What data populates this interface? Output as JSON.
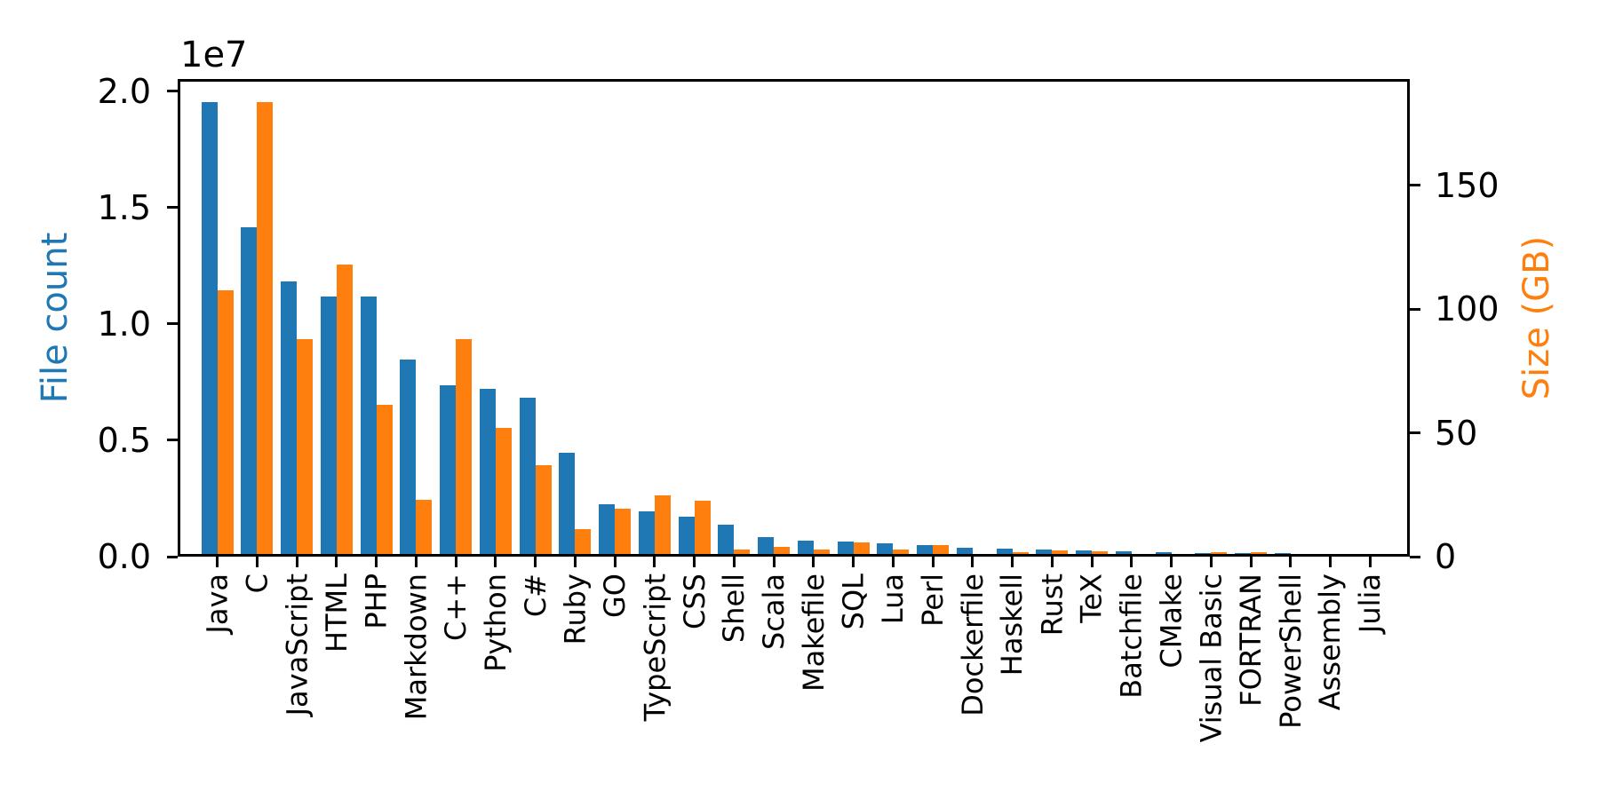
{
  "chart_data": {
    "type": "bar",
    "title": "",
    "grid": false,
    "legend": "none",
    "background": "#ffffff",
    "spine_color": "#000000",
    "categories": [
      "Java",
      "C",
      "JavaScript",
      "HTML",
      "PHP",
      "Markdown",
      "C++",
      "Python",
      "C#",
      "Ruby",
      "GO",
      "TypeScript",
      "CSS",
      "Shell",
      "Scala",
      "Makefile",
      "SQL",
      "Lua",
      "Perl",
      "Dockerfile",
      "Haskell",
      "Rust",
      "TeX",
      "Batchfile",
      "CMake",
      "Visual Basic",
      "FORTRAN",
      "PowerShell",
      "Assembly",
      "Julia"
    ],
    "series": [
      {
        "name": "File count",
        "axis": "left",
        "color": "#1f77b4",
        "values": [
          19548190,
          14143113,
          11839883,
          11178557,
          11177610,
          8464626,
          7380520,
          7226626,
          6811652,
          4473331,
          2265436,
          1940406,
          1734406,
          1385648,
          835755,
          679430,
          656671,
          578554,
          497949,
          366505,
          340623,
          322431,
          251015,
          236945,
          175282,
          155652,
          142038,
          136846,
          82905,
          58317
        ]
      },
      {
        "name": "Size (GB)",
        "axis": "right",
        "color": "#ff7f0e",
        "values": [
          107.7,
          183.83,
          87.82,
          118.12,
          61.41,
          23.09,
          87.73,
          52.03,
          36.83,
          10.95,
          19.28,
          24.59,
          22.67,
          3.01,
          3.87,
          2.92,
          5.67,
          2.81,
          4.7,
          0.71,
          1.85,
          2.68,
          2.15,
          0.7,
          0.54,
          1.91,
          1.62,
          0.69,
          0.78,
          0.29
        ]
      }
    ],
    "left_axis": {
      "label": "File count",
      "color": "#1f77b4",
      "offset_label": "1e7",
      "tick_labels": [
        "0.0",
        "0.5",
        "1.0",
        "1.5",
        "2.0"
      ],
      "tick_values": [
        0,
        5000000,
        10000000,
        15000000,
        20000000
      ],
      "range": [
        0,
        20525600
      ]
    },
    "right_axis": {
      "label": "Size (GB)",
      "color": "#ff7f0e",
      "tick_labels": [
        "0",
        "50",
        "100",
        "150"
      ],
      "tick_values": [
        0,
        50,
        100,
        150
      ],
      "range": [
        0,
        193.02
      ]
    },
    "x_axis": {
      "tick_label_rotation": 90
    }
  }
}
